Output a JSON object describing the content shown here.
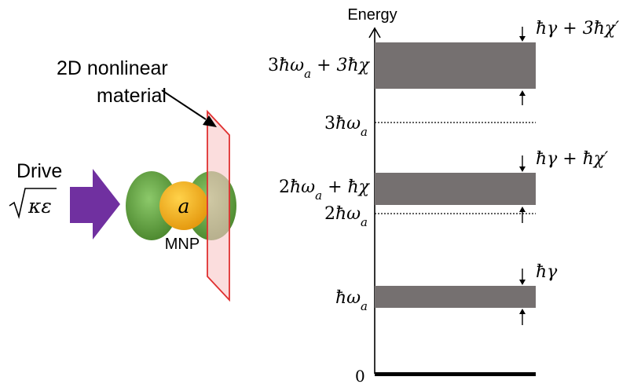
{
  "left": {
    "material_label_line1": "2D nonlinear",
    "material_label_line2": "material",
    "drive_label": "Drive",
    "drive_symbol": "κε",
    "mode_symbol": "a",
    "particle_label": "MNP",
    "colors": {
      "drive_arrow": "#7030A0",
      "lobes": "#70AD47",
      "particle": "#F2B01E",
      "sheet_fill": "#F8C8C8",
      "sheet_edge": "#E03030"
    }
  },
  "energy": {
    "axis_label": "Energy",
    "zero_label": "0",
    "bands": [
      {
        "label": "ħω",
        "sub": "a",
        "width_label": "ħγ"
      },
      {
        "label_prefix": "2",
        "label": "ħω",
        "sub": "a",
        "label_suffix": " + ħχ",
        "width_label": "ħγ + ħχ′"
      },
      {
        "label_prefix": "3",
        "label": "ħω",
        "sub": "a",
        "label_suffix": " + 3ħχ",
        "width_label": "ħγ + 3ħχ′"
      }
    ],
    "dotted_levels": [
      {
        "prefix": "2",
        "label": "ħω",
        "sub": "a"
      },
      {
        "prefix": "3",
        "label": "ħω",
        "sub": "a"
      }
    ],
    "colors": {
      "band": "#757070",
      "baseline": "#000000"
    }
  }
}
